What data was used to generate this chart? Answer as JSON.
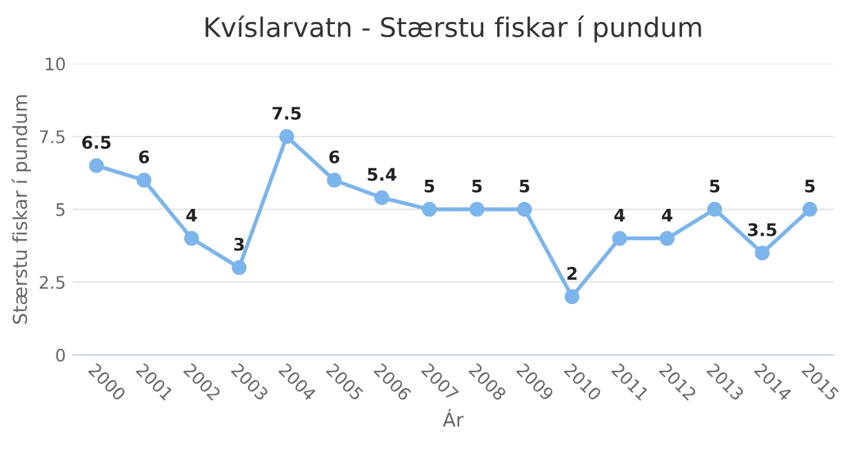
{
  "chart_data": {
    "type": "line",
    "title": "Kvíslarvatn - Stærstu fiskar í pundum",
    "xlabel": "Ár",
    "ylabel": "Stærstu fiskar í pundum",
    "categories": [
      "2000",
      "2001",
      "2002",
      "2003",
      "2004",
      "2005",
      "2006",
      "2007",
      "2008",
      "2009",
      "2010",
      "2011",
      "2012",
      "2013",
      "2014",
      "2015"
    ],
    "series": [
      {
        "color": "#7cb5ec",
        "values": [
          6.5,
          6,
          4,
          3,
          7.5,
          6,
          5.4,
          5,
          5,
          5,
          2,
          4,
          4,
          5,
          3.5,
          5
        ]
      }
    ],
    "ylim": [
      0,
      10
    ],
    "yticks": [
      0,
      2.5,
      5,
      7.5,
      10
    ],
    "grid": "y",
    "marker": "circle",
    "line_style": "solid",
    "data_labels": true,
    "legend": false
  }
}
